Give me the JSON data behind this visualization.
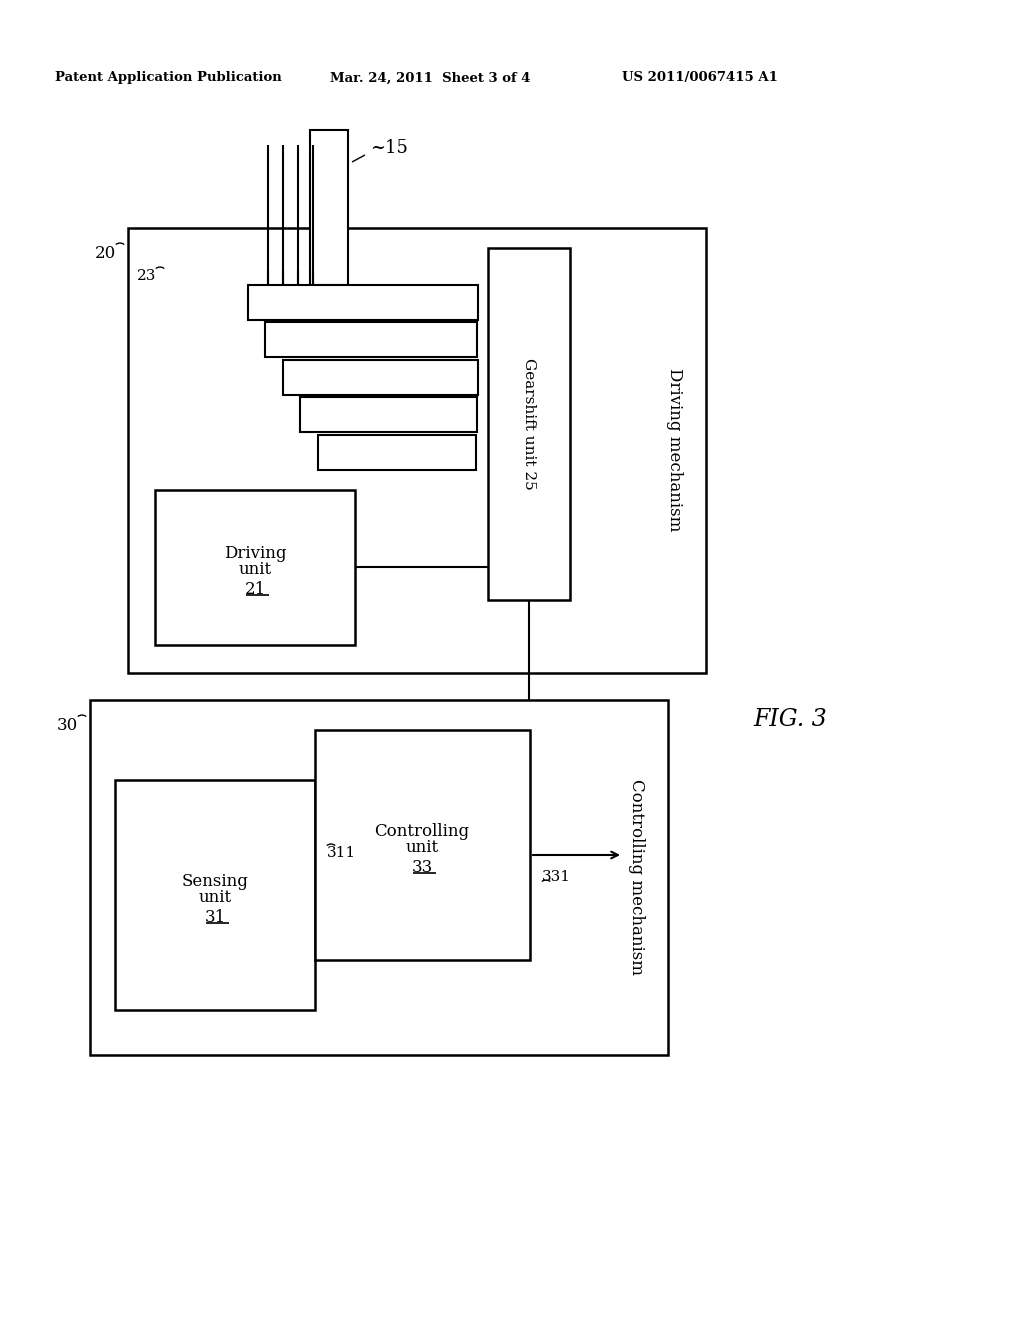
{
  "bg_color": "#ffffff",
  "header_left": "Patent Application Publication",
  "header_mid": "Mar. 24, 2011  Sheet 3 of 4",
  "header_right": "US 2011/0067415 A1",
  "fig_label": "FIG. 3"
}
